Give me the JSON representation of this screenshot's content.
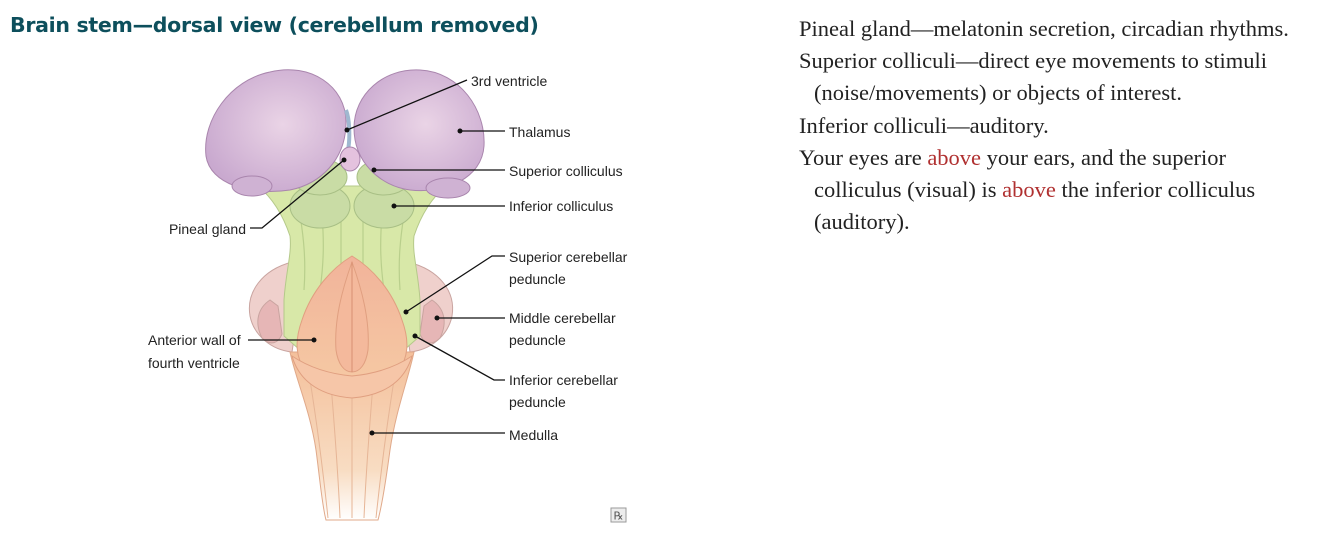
{
  "title": "Brain stem—dorsal view (cerebellum removed)",
  "labels": {
    "third_ventricle": "3rd ventricle",
    "thalamus": "Thalamus",
    "superior_colliculus": "Superior colliculus",
    "inferior_colliculus": "Inferior colliculus",
    "pineal_gland": "Pineal gland",
    "superior_cerebellar_1": "Superior cerebellar",
    "superior_cerebellar_2": "peduncle",
    "middle_cerebellar_1": "Middle cerebellar",
    "middle_cerebellar_2": "peduncle",
    "anterior_wall_1": "Anterior wall of",
    "anterior_wall_2": "fourth ventricle",
    "inferior_cerebellar_1": "Inferior cerebellar",
    "inferior_cerebellar_2": "peduncle",
    "medulla": "Medulla"
  },
  "badge": "℞",
  "notes": {
    "pineal": "Pineal gland—melatonin secretion, circadian rhythms.",
    "superior": "Superior colliculi—direct eye movements to stimuli (noise/movements) or objects of interest.",
    "inferior": "Inferior colliculi—auditory.",
    "eyes_1": "Your eyes are ",
    "eyes_hl_1": "above",
    "eyes_2": " your ears, and the superior colliculus (visual) is ",
    "eyes_hl_2": "above",
    "eyes_3": " the inferior colliculus (auditory)."
  },
  "colors": {
    "title": "#0d4f5c",
    "thalamus": "#dcc3dc",
    "colliculi": "#c9dca5",
    "peduncles": "#d8e8a8",
    "pons": "#f3c6a6",
    "medulla": "#f7d4b6",
    "highlight": "#b03030"
  }
}
